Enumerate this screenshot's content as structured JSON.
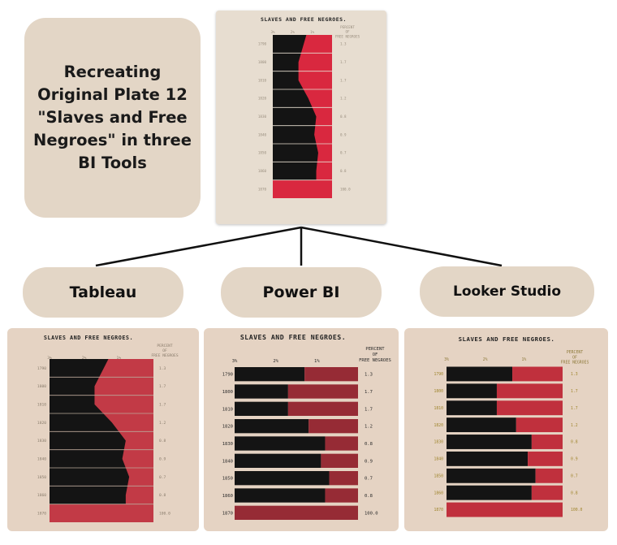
{
  "title": "Recreating\nOriginal Plate 12\n\"Slaves and Free\nNegroes\" in three\nBI Tools",
  "tools": [
    "Tableau",
    "Power BI",
    "Looker Studio"
  ],
  "chart_title": "SLAVES AND FREE NEGROES.",
  "right_header_lines": [
    "PERCENT",
    "OF",
    "FREE NEGROES"
  ],
  "top_ticks": [
    "3%",
    "2%",
    "1%"
  ],
  "colors": {
    "slave": "#141414",
    "free_original": "#d9283f",
    "free_tableau": "#c23a46",
    "free_powerbi": "#962b35",
    "free_looker": "#c0303d",
    "background": "#e5d3c3"
  },
  "chart_data": {
    "type": "bar",
    "title": "SLAVES AND FREE NEGROES.",
    "categories": [
      "1790",
      "1800",
      "1810",
      "1820",
      "1830",
      "1840",
      "1850",
      "1860",
      "1870"
    ],
    "series": [
      {
        "name": "PERCENT OF FREE NEGROES",
        "values": [
          1.3,
          1.7,
          1.7,
          1.2,
          0.8,
          0.9,
          0.7,
          0.8,
          100
        ]
      }
    ],
    "value_labels": [
      "1.3",
      "1.7",
      "1.7",
      "1.2",
      "0.8",
      "0.9",
      "0.7",
      "0.8",
      "100.0"
    ],
    "axis_max_percent": 3
  }
}
